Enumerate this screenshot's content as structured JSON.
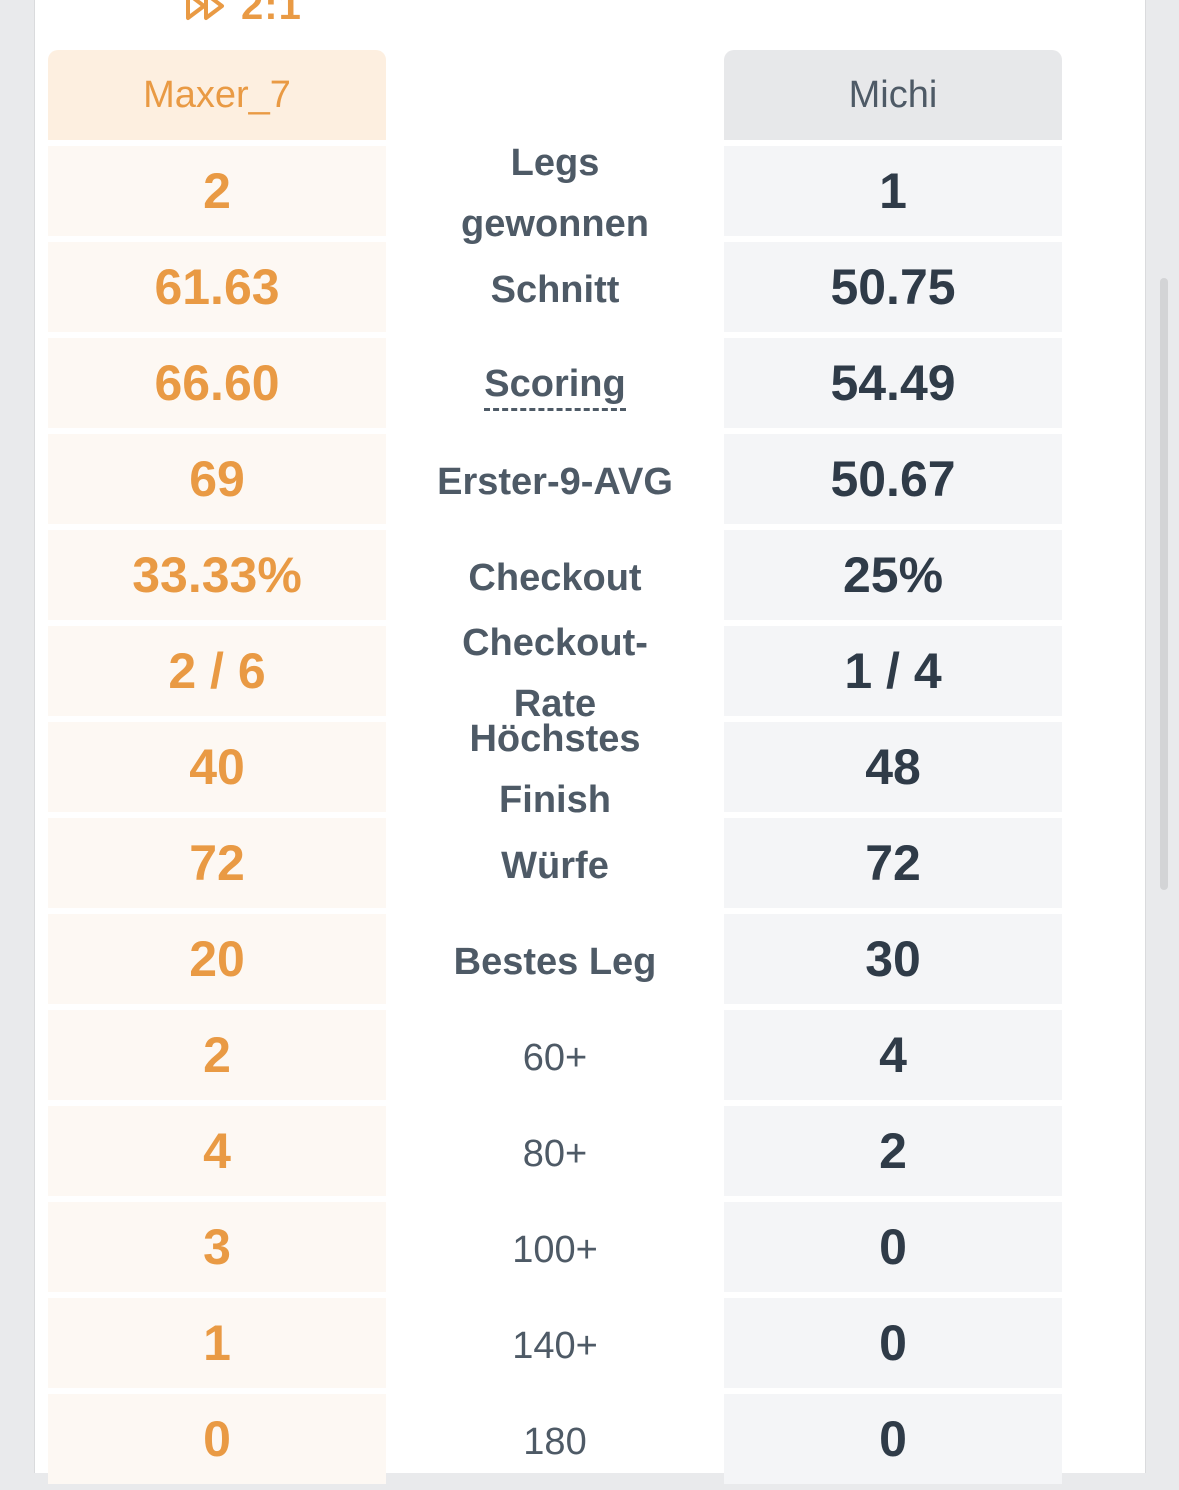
{
  "match": {
    "score": "2:1",
    "score_icon": "fast-forward-icon"
  },
  "players": {
    "left": {
      "name": "Maxer_7"
    },
    "right": {
      "name": "Michi"
    }
  },
  "stats": [
    {
      "label": "Legs\ngewonnen",
      "left": "2",
      "right": "1"
    },
    {
      "label": "Schnitt",
      "left": "61.63",
      "right": "50.75"
    },
    {
      "label": "Scoring",
      "left": "66.60",
      "right": "54.49"
    },
    {
      "label": "Erster-9-AVG",
      "left": "69",
      "right": "50.67"
    },
    {
      "label": "Checkout",
      "left": "33.33%",
      "right": "25%"
    },
    {
      "label": "Checkout-\nRate",
      "left": "2 / 6",
      "right": "1 / 4"
    },
    {
      "label": "Höchstes\nFinish",
      "left": "40",
      "right": "48"
    },
    {
      "label": "Würfe",
      "left": "72",
      "right": "72"
    },
    {
      "label": "Bestes Leg",
      "left": "20",
      "right": "30"
    },
    {
      "label": "60+",
      "left": "2",
      "right": "4"
    },
    {
      "label": "80+",
      "left": "4",
      "right": "2"
    },
    {
      "label": "100+",
      "left": "3",
      "right": "0"
    },
    {
      "label": "140+",
      "left": "1",
      "right": "0"
    },
    {
      "label": "180",
      "left": "0",
      "right": "0"
    }
  ],
  "colors": {
    "accent_orange": "#e99a44",
    "dark_text": "#2f3b48",
    "label_text": "#4e5a66"
  }
}
